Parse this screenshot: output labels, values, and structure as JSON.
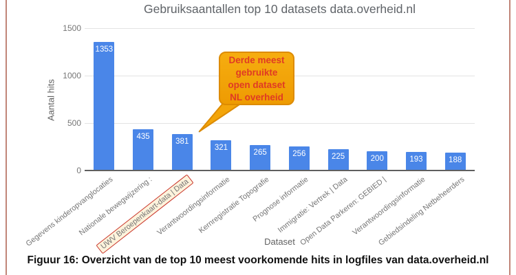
{
  "page": {
    "caption": "Figuur 16: Overzicht van de top 10 meest voorkomende hits in logfiles van data.overheid.nl"
  },
  "chart_data": {
    "type": "bar",
    "title": "Gebruiksaantallen top 10 datasets data.overheid.nl",
    "xlabel": "Dataset",
    "ylabel": "Aantal hits",
    "ylim": [
      0,
      1500
    ],
    "yticks": [
      0,
      500,
      1000,
      1500
    ],
    "categories": [
      "Gegevens kinderopvanglocaties",
      "Nationale bewegwijzering :",
      "UWV Beroepenkaart-data | Data",
      "Verantwoordingsinformatie",
      "Kernregistratie Topografie",
      "Prognose informatie",
      "Immigratie: Vertrek | Data",
      "Open Data Parkeren: GEBIED |",
      "Verantwoordingsinformatie",
      "Gebiedsindeling Netbeheerders"
    ],
    "values": [
      1353,
      435,
      381,
      321,
      265,
      256,
      225,
      200,
      193,
      188
    ],
    "bar_color": "#4a86e8",
    "value_label_color": "#ffffff",
    "grid": true,
    "legend": "none",
    "highlight": {
      "category_index": 2,
      "box_border_color": "#c9342b",
      "box_fill_color": "#fdf3dc"
    }
  },
  "callout": {
    "lines": [
      "Derde meest",
      "gebruikte",
      "open dataset",
      "NL overheid"
    ],
    "text_color": "#e03a24",
    "fill_color": "#f2a50a",
    "border_color": "#dd8b00"
  }
}
